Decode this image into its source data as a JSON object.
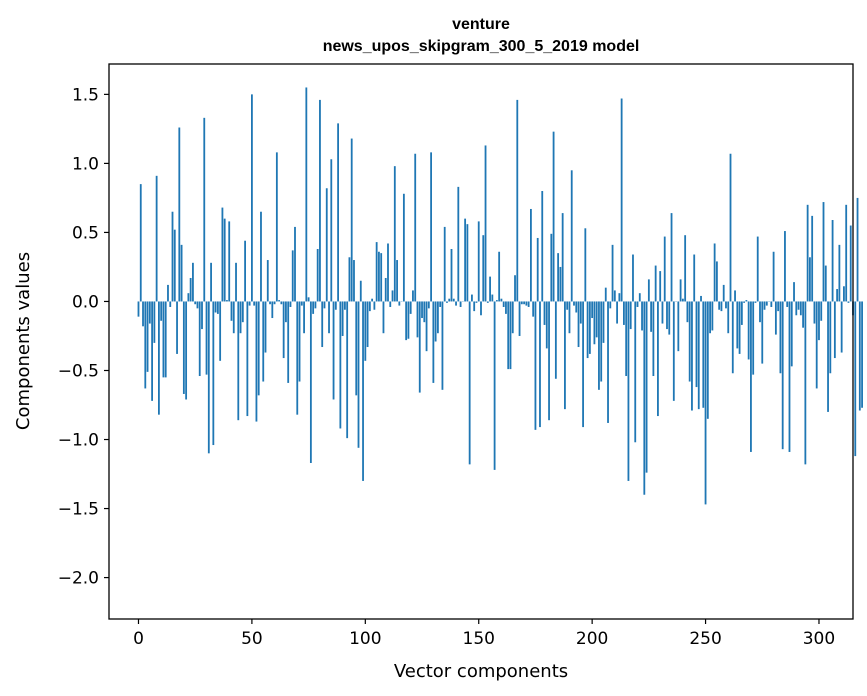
{
  "chart_data": {
    "type": "bar",
    "title": "venture",
    "subtitle": "news_upos_skipgram_300_5_2019 model",
    "xlabel": "Vector components",
    "ylabel": "Components values",
    "xlim": [
      -13,
      315
    ],
    "ylim": [
      -2.3,
      1.72
    ],
    "xticks": [
      0,
      50,
      100,
      150,
      200,
      250,
      300
    ],
    "yticks": [
      1.5,
      1.0,
      0.5,
      0.0,
      -0.5,
      -1.0,
      -1.5,
      -2.0
    ],
    "xtick_labels": [
      "0",
      "50",
      "100",
      "150",
      "200",
      "250",
      "300"
    ],
    "ytick_labels": [
      "1.5",
      "1.0",
      "0.5",
      "0.0",
      "−0.5",
      "−1.0",
      "−1.5",
      "−2.0"
    ],
    "bar_color": "#1f77b4",
    "values": [
      -0.11,
      0.85,
      -0.18,
      -0.63,
      -0.51,
      -0.16,
      -0.72,
      -0.3,
      0.91,
      -0.82,
      -0.14,
      -0.55,
      -0.55,
      0.12,
      -0.04,
      0.65,
      0.52,
      -0.38,
      1.26,
      0.41,
      -0.67,
      -0.71,
      0.06,
      0.17,
      0.28,
      -0.02,
      -0.05,
      -0.54,
      -0.2,
      1.33,
      -0.53,
      -1.1,
      0.28,
      -1.04,
      -0.08,
      -0.09,
      -0.43,
      0.68,
      0.6,
      0.01,
      0.58,
      -0.14,
      -0.23,
      0.28,
      -0.86,
      -0.23,
      -0.15,
      0.44,
      -0.83,
      -0.03,
      1.5,
      -0.03,
      -0.87,
      -0.68,
      0.65,
      -0.58,
      -0.37,
      0.3,
      -0.02,
      -0.12,
      -0.02,
      1.08,
      0.01,
      -0.02,
      -0.41,
      -0.15,
      -0.59,
      -0.04,
      0.37,
      0.54,
      -0.82,
      -0.58,
      -0.03,
      -0.23,
      1.55,
      0.03,
      -1.17,
      -0.09,
      -0.05,
      0.38,
      1.46,
      -0.33,
      -0.05,
      0.82,
      -0.23,
      1.03,
      -0.71,
      -0.06,
      1.29,
      -0.92,
      -0.25,
      -0.06,
      -0.99,
      0.32,
      1.18,
      0.3,
      -0.68,
      -1.06,
      0.15,
      -1.3,
      -0.43,
      -0.33,
      -0.07,
      0.02,
      -0.06,
      0.43,
      0.36,
      0.35,
      -0.23,
      0.17,
      0.42,
      -0.04,
      0.08,
      0.98,
      0.3,
      -0.03,
      0.0,
      0.78,
      -0.28,
      -0.27,
      -0.09,
      0.08,
      1.07,
      -0.26,
      -0.66,
      -0.12,
      -0.15,
      -0.36,
      -0.05,
      1.08,
      -0.59,
      -0.29,
      -0.23,
      -0.04,
      -0.64,
      0.54,
      -0.01,
      0.02,
      0.38,
      0.02,
      -0.03,
      0.83,
      -0.04,
      0.0,
      0.6,
      0.56,
      -1.18,
      0.05,
      -0.07,
      -0.01,
      0.58,
      -0.1,
      0.48,
      1.13,
      -0.01,
      0.18,
      0.05,
      -1.22,
      0.01,
      0.36,
      0.02,
      -0.04,
      -0.09,
      -0.49,
      -0.49,
      -0.23,
      0.19,
      1.46,
      -0.25,
      -0.02,
      -0.02,
      -0.03,
      -0.04,
      0.67,
      -0.11,
      -0.93,
      0.46,
      -0.91,
      0.8,
      -0.17,
      -0.34,
      -0.86,
      0.49,
      1.23,
      -0.56,
      0.35,
      0.25,
      0.64,
      -0.78,
      -0.06,
      -0.23,
      0.95,
      -0.03,
      -0.08,
      -0.33,
      -0.16,
      -0.91,
      0.53,
      -0.41,
      -0.38,
      -0.12,
      -0.31,
      -0.26,
      -0.64,
      -0.58,
      -0.3,
      0.1,
      -0.88,
      -0.05,
      0.41,
      0.08,
      -0.16,
      0.06,
      1.47,
      -0.17,
      -0.54,
      -1.3,
      -0.2,
      0.34,
      -1.02,
      -0.04,
      0.06,
      -0.21,
      -1.4,
      -1.24,
      0.16,
      -0.22,
      -0.54,
      0.26,
      -0.83,
      0.22,
      -0.16,
      0.47,
      -0.2,
      -0.24,
      0.64,
      -0.72,
      0.0,
      -0.36,
      0.16,
      0.02,
      0.48,
      -0.15,
      -0.58,
      -0.79,
      0.34,
      -0.62,
      -0.78,
      0.04,
      -0.77,
      -1.47,
      -0.85,
      -0.23,
      -0.21,
      0.42,
      0.29,
      -0.06,
      -0.07,
      0.12,
      -0.05,
      -0.23,
      1.07,
      -0.52,
      0.08,
      -0.34,
      -0.38,
      -0.17,
      -0.01,
      0.01,
      -0.42,
      -1.09,
      -0.53,
      -0.01,
      0.47,
      -0.15,
      -0.45,
      -0.06,
      -0.03,
      0.0,
      -0.04,
      0.36,
      -0.24,
      -0.07,
      -0.52,
      -1.07,
      0.51,
      -0.04,
      -1.09,
      -0.47,
      0.14,
      -0.1,
      -0.06,
      -0.1,
      -0.19,
      -1.18,
      0.7,
      0.32,
      0.62,
      -0.16,
      -0.63,
      -0.28,
      -0.14,
      0.72,
      0.26,
      -0.8,
      -0.52,
      0.59,
      -0.41,
      0.09,
      0.41,
      -0.37,
      0.11,
      0.7,
      -0.01,
      0.55,
      -0.1,
      -1.12,
      0.75,
      -0.79,
      -0.77
    ]
  }
}
